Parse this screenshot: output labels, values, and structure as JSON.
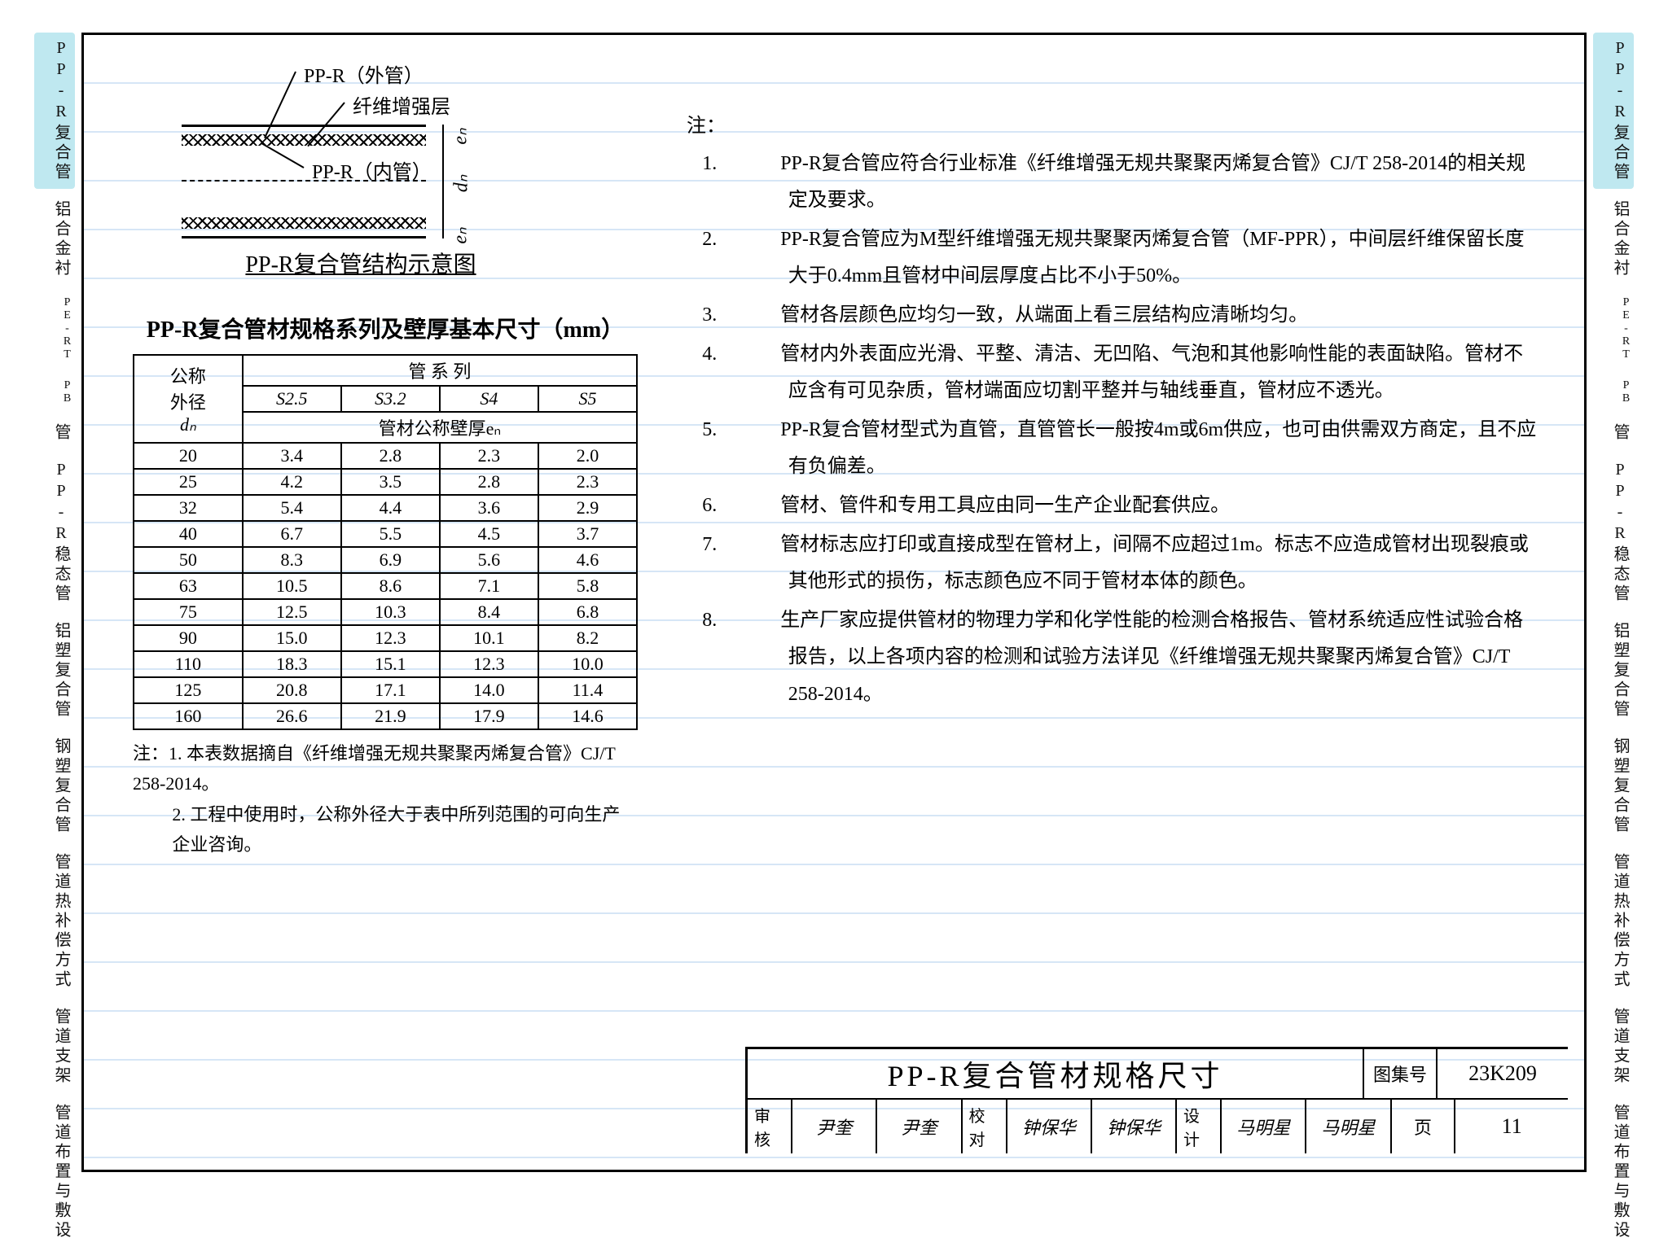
{
  "colors": {
    "ink": "#000000",
    "page_bg": "#ffffff",
    "rule_line": "#89b7e6",
    "tab_active_bg": "#bfe8f0"
  },
  "side_tabs": [
    {
      "label": "PP-R复合管",
      "active": true
    },
    {
      "label": "铝合金衬",
      "active": false
    },
    {
      "label": "PE-RT",
      "active": false,
      "small": true
    },
    {
      "label": "PB",
      "active": false,
      "small": true
    },
    {
      "label": "管",
      "active": false
    },
    {
      "label": "PP-R稳态管",
      "active": false
    },
    {
      "label": "铝塑复合管",
      "active": false
    },
    {
      "label": "钢塑复合管",
      "active": false
    },
    {
      "label": "管道热补偿方式",
      "active": false
    },
    {
      "label": "管道支架",
      "active": false
    },
    {
      "label": "管道布置与敷设",
      "active": false
    }
  ],
  "diagram": {
    "title": "PP-R复合管结构示意图",
    "labels": {
      "outer": "PP-R（外管）",
      "fiber": "纤维增强层",
      "inner": "PP-R（内管）",
      "en": "eₙ",
      "dn": "dₙ"
    }
  },
  "table": {
    "title": "PP-R复合管材规格系列及壁厚基本尺寸（mm）",
    "head": {
      "col1_l1": "公称",
      "col1_l2": "外径",
      "col1_l3": "dₙ",
      "group": "管 系 列",
      "series": [
        "S2.5",
        "S3.2",
        "S4",
        "S5"
      ],
      "subhead": "管材公称壁厚eₙ"
    },
    "rows": [
      {
        "dn": "20",
        "v": [
          "3.4",
          "2.8",
          "2.3",
          "2.0"
        ]
      },
      {
        "dn": "25",
        "v": [
          "4.2",
          "3.5",
          "2.8",
          "2.3"
        ]
      },
      {
        "dn": "32",
        "v": [
          "5.4",
          "4.4",
          "3.6",
          "2.9"
        ]
      },
      {
        "dn": "40",
        "v": [
          "6.7",
          "5.5",
          "4.5",
          "3.7"
        ]
      },
      {
        "dn": "50",
        "v": [
          "8.3",
          "6.9",
          "5.6",
          "4.6"
        ]
      },
      {
        "dn": "63",
        "v": [
          "10.5",
          "8.6",
          "7.1",
          "5.8"
        ]
      },
      {
        "dn": "75",
        "v": [
          "12.5",
          "10.3",
          "8.4",
          "6.8"
        ]
      },
      {
        "dn": "90",
        "v": [
          "15.0",
          "12.3",
          "10.1",
          "8.2"
        ]
      },
      {
        "dn": "110",
        "v": [
          "18.3",
          "15.1",
          "12.3",
          "10.0"
        ]
      },
      {
        "dn": "125",
        "v": [
          "20.8",
          "17.1",
          "14.0",
          "11.4"
        ]
      },
      {
        "dn": "160",
        "v": [
          "26.6",
          "21.9",
          "17.9",
          "14.6"
        ]
      }
    ],
    "note_label": "注：",
    "notes": [
      "1. 本表数据摘自《纤维增强无规共聚聚丙烯复合管》CJ/T 258-2014。",
      "2. 工程中使用时，公称外径大于表中所列范围的可向生产企业咨询。"
    ]
  },
  "right_notes": {
    "label": "注：",
    "items": [
      "PP-R复合管应符合行业标准《纤维增强无规共聚聚丙烯复合管》CJ/T 258-2014的相关规定及要求。",
      "PP-R复合管应为M型纤维增强无规共聚聚丙烯复合管（MF-PPR），中间层纤维保留长度大于0.4mm且管材中间层厚度占比不小于50%。",
      "管材各层颜色应均匀一致，从端面上看三层结构应清晰均匀。",
      "管材内外表面应光滑、平整、清洁、无凹陷、气泡和其他影响性能的表面缺陷。管材不应含有可见杂质，管材端面应切割平整并与轴线垂直，管材应不透光。",
      "PP-R复合管材型式为直管，直管管长一般按4m或6m供应，也可由供需双方商定，且不应有负偏差。",
      "管材、管件和专用工具应由同一生产企业配套供应。",
      "管材标志应打印或直接成型在管材上，间隔不应超过1m。标志不应造成管材出现裂痕或其他形式的损伤，标志颜色应不同于管材本体的颜色。",
      "生产厂家应提供管材的物理力学和化学性能的检测合格报告、管材系统适应性试验合格报告，以上各项内容的检测和试验方法详见《纤维增强无规共聚聚丙烯复合管》CJ/T 258-2014。"
    ]
  },
  "titleblock": {
    "title": "PP-R复合管材规格尺寸",
    "album_key": "图集号",
    "album_val": "23K209",
    "row2": {
      "k1": "审核",
      "v1": "尹奎",
      "s1": "尹奎",
      "k2": "校对",
      "v2": "钟保华",
      "s2": "钟保华",
      "k3": "设计",
      "v3": "马明星",
      "s3": "马明星",
      "page_key": "页",
      "page_val": "11"
    }
  }
}
